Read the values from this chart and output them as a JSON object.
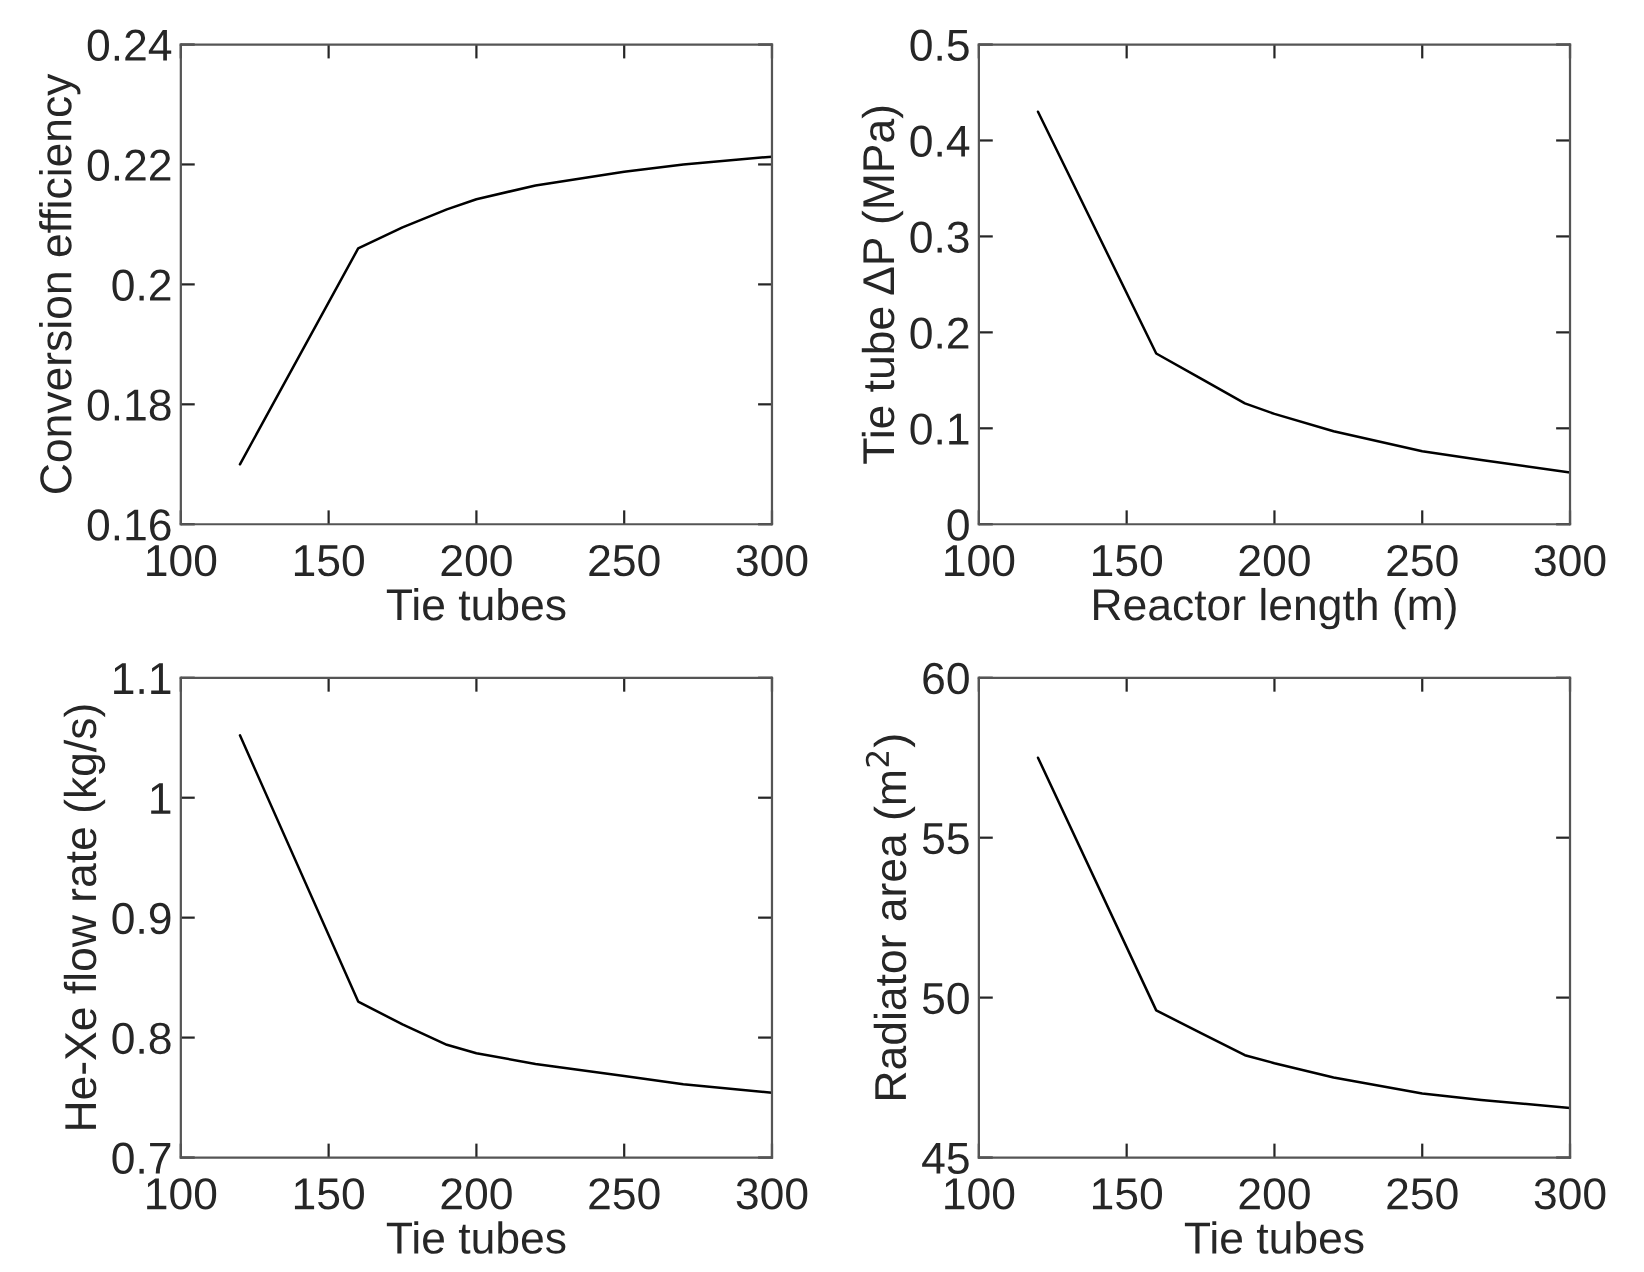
{
  "chart_data": [
    {
      "type": "line",
      "xlabel": "Tie tubes",
      "ylabel": "Conversion efficiency",
      "xlim": [
        100,
        300
      ],
      "xticks": [
        100,
        150,
        200,
        250,
        300
      ],
      "ylim": [
        0.16,
        0.24
      ],
      "yticks": [
        0.16,
        0.18,
        0.2,
        0.22,
        0.24
      ],
      "grid": false,
      "legend": false,
      "marker": "none",
      "line_style": "solid",
      "series": [
        {
          "color": "#000000",
          "x": [
            120,
            160,
            175,
            190,
            200,
            220,
            250,
            270,
            300
          ],
          "values": [
            0.17,
            0.206,
            0.2095,
            0.2125,
            0.2142,
            0.2165,
            0.2188,
            0.22,
            0.2213
          ]
        }
      ]
    },
    {
      "type": "line",
      "xlabel": "Reactor length (m)",
      "ylabel": "Tie tube ΔP (MPa)",
      "xlim": [
        100,
        300
      ],
      "xticks": [
        100,
        150,
        200,
        250,
        300
      ],
      "ylim": [
        0,
        0.5
      ],
      "yticks": [
        0,
        0.1,
        0.2,
        0.3,
        0.4,
        0.5
      ],
      "grid": false,
      "legend": false,
      "marker": "none",
      "line_style": "solid",
      "series": [
        {
          "color": "#000000",
          "x": [
            120,
            160,
            175,
            190,
            200,
            220,
            250,
            270,
            300
          ],
          "values": [
            0.43,
            0.178,
            0.152,
            0.126,
            0.115,
            0.097,
            0.076,
            0.067,
            0.054
          ]
        }
      ]
    },
    {
      "type": "line",
      "xlabel": "Tie tubes",
      "ylabel": "He-Xe flow rate (kg/s)",
      "xlim": [
        100,
        300
      ],
      "xticks": [
        100,
        150,
        200,
        250,
        300
      ],
      "ylim": [
        0.7,
        1.1
      ],
      "yticks": [
        0.7,
        0.8,
        0.9,
        1,
        1.1
      ],
      "grid": false,
      "legend": false,
      "marker": "none",
      "line_style": "solid",
      "series": [
        {
          "color": "#000000",
          "x": [
            120,
            160,
            175,
            190,
            200,
            220,
            250,
            270,
            300
          ],
          "values": [
            1.052,
            0.83,
            0.811,
            0.794,
            0.787,
            0.778,
            0.768,
            0.761,
            0.754
          ]
        }
      ]
    },
    {
      "type": "line",
      "xlabel": "Tie tubes",
      "ylabel": "Radiator area (m$^{2}$)",
      "xlim": [
        100,
        300
      ],
      "xticks": [
        100,
        150,
        200,
        250,
        300
      ],
      "ylim": [
        45,
        60
      ],
      "yticks": [
        45,
        50,
        55,
        60
      ],
      "grid": false,
      "legend": false,
      "marker": "none",
      "line_style": "solid",
      "series": [
        {
          "color": "#000000",
          "x": [
            120,
            160,
            175,
            190,
            200,
            220,
            250,
            270,
            300
          ],
          "values": [
            57.5,
            49.6,
            48.9,
            48.2,
            47.95,
            47.5,
            47.0,
            46.8,
            46.55
          ]
        }
      ]
    }
  ]
}
